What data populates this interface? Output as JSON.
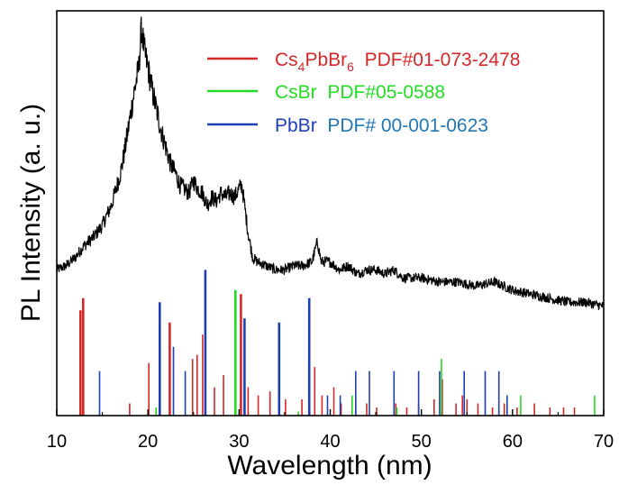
{
  "chart_data": {
    "type": "line",
    "xlabel": "Wavelength (nm)",
    "ylabel": "PL Intensity (a. u.)",
    "xlim": [
      10,
      70
    ],
    "ylim": [
      0,
      1.0
    ],
    "xticks": [
      10,
      20,
      30,
      40,
      50,
      60,
      70
    ],
    "yticks_shown": false,
    "grid": false,
    "legend_position": "top-right",
    "legend": [
      {
        "name_main": "Cs",
        "name_sub1": "4",
        "name_mid": "PbBr",
        "name_sub2": "6",
        "pdf": "PDF#01-073-2478",
        "color": "#d62728"
      },
      {
        "name_main": "CsBr",
        "pdf": "PDF#05-0588",
        "color": "#22dd22"
      },
      {
        "name_main": "PbBr",
        "pdf": "PDF# 00-001-0623",
        "color": "#1f3fb4",
        "pdf_color": "#1f77b4"
      }
    ],
    "pl_spectrum": {
      "name": "",
      "color": "#000000",
      "x": [
        10,
        11,
        12,
        13,
        14,
        15,
        16,
        17,
        17.5,
        18,
        18.5,
        19,
        19.3,
        19.6,
        20,
        20.5,
        21,
        21.5,
        22,
        22.5,
        23,
        23.5,
        24,
        24.5,
        25,
        25.5,
        26,
        26.5,
        27,
        27.5,
        28,
        28.5,
        29,
        29.5,
        30,
        30.3,
        30.6,
        31,
        31.5,
        32,
        33,
        34,
        35,
        36,
        37,
        38,
        38.6,
        39,
        40,
        41,
        42,
        43,
        44,
        45,
        46,
        47,
        48,
        50,
        52,
        54,
        56,
        58,
        60,
        62,
        64,
        66,
        68,
        70
      ],
      "y": [
        0.36,
        0.37,
        0.39,
        0.42,
        0.44,
        0.47,
        0.52,
        0.6,
        0.66,
        0.73,
        0.8,
        0.86,
        0.96,
        0.9,
        0.86,
        0.8,
        0.75,
        0.7,
        0.66,
        0.62,
        0.6,
        0.57,
        0.56,
        0.55,
        0.58,
        0.56,
        0.55,
        0.52,
        0.54,
        0.53,
        0.55,
        0.54,
        0.55,
        0.54,
        0.56,
        0.57,
        0.52,
        0.45,
        0.39,
        0.38,
        0.37,
        0.36,
        0.36,
        0.37,
        0.37,
        0.38,
        0.43,
        0.38,
        0.38,
        0.36,
        0.37,
        0.35,
        0.36,
        0.36,
        0.35,
        0.36,
        0.34,
        0.34,
        0.33,
        0.33,
        0.32,
        0.33,
        0.31,
        0.3,
        0.29,
        0.28,
        0.28,
        0.27
      ]
    },
    "reference_patterns": [
      {
        "name": "Cs4PbBr6",
        "color": "#d62728",
        "positions": [
          12.6,
          12.9,
          18.0,
          20.1,
          22.4,
          24.9,
          25.4,
          26.0,
          27.3,
          28.3,
          30.2,
          31.0,
          32.1,
          33.4,
          35.1,
          36.9,
          38.3,
          39.1,
          40.4,
          41.2,
          42.8,
          44.0,
          45.1,
          47.2,
          48.4,
          49.7,
          51.4,
          52.3,
          53.8,
          54.5,
          55.0,
          56.2,
          57.8,
          59.1,
          60.5,
          62.4,
          64.1,
          65.6,
          66.8
        ],
        "heights": [
          0.26,
          0.29,
          0.03,
          0.13,
          0.23,
          0.14,
          0.15,
          0.2,
          0.07,
          0.1,
          0.3,
          0.07,
          0.05,
          0.06,
          0.04,
          0.04,
          0.12,
          0.05,
          0.07,
          0.03,
          0.04,
          0.03,
          0.02,
          0.03,
          0.02,
          0.03,
          0.04,
          0.09,
          0.03,
          0.05,
          0.04,
          0.03,
          0.02,
          0.03,
          0.02,
          0.03,
          0.02,
          0.02,
          0.02
        ]
      },
      {
        "name": "CsBr",
        "color": "#22dd22",
        "positions": [
          20.9,
          29.6,
          36.5,
          42.4,
          47.3,
          52.2,
          60.9,
          69.0
        ],
        "heights": [
          0.02,
          0.31,
          0.01,
          0.05,
          0.02,
          0.14,
          0.05,
          0.05
        ]
      },
      {
        "name": "PbBr",
        "color": "#1f3fb4",
        "positions": [
          14.7,
          21.3,
          22.8,
          24.1,
          26.3,
          30.6,
          34.4,
          37.7,
          39.7,
          41.1,
          42.8,
          44.3,
          47.0,
          49.7,
          52.0,
          54.7,
          57.0,
          58.5,
          59.4
        ],
        "heights": [
          0.11,
          0.28,
          0.17,
          0.11,
          0.36,
          0.24,
          0.23,
          0.29,
          0.05,
          0.05,
          0.11,
          0.11,
          0.11,
          0.11,
          0.11,
          0.11,
          0.11,
          0.11,
          0.05
        ]
      }
    ]
  }
}
